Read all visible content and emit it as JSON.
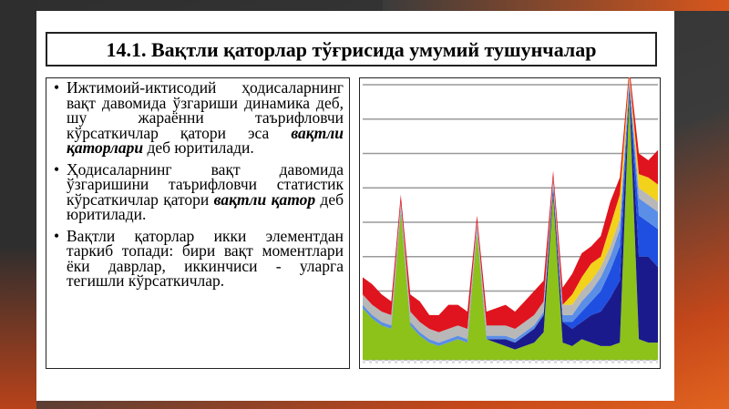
{
  "title": "14.1. Вақтли қаторлар тўғрисида умумий тушунчалар",
  "bullets": [
    [
      "Ижтимоий-иктисодий ҳодисаларнинг вақт давомида ўзгариши динамика деб, шу жараённи таърифловчи кўрсаткичлар қатори эса ",
      "вақтли қаторлари",
      " деб юритилади."
    ],
    [
      "Ҳодисаларнинг вақт давомида ўзгаришини таърифловчи статистик кўрсаткичлар қатори ",
      "вақтли қатор",
      " деб юритилади."
    ],
    [
      "Вақтли қаторлар икки элементдан таркиб топади: бири вақт моментлари ёки даврлар, иккинчиси - уларга тегишли кўрсаткичлар."
    ]
  ],
  "chart_data": {
    "type": "stacked-area",
    "ylim": [
      0,
      8
    ],
    "yticks": [
      0,
      1,
      2,
      3,
      4,
      5,
      6,
      7,
      8
    ],
    "grid": true,
    "series": [
      {
        "color": "#8cc21a",
        "values": [
          1.5,
          1.2,
          1.0,
          0.9,
          4.3,
          1.0,
          0.7,
          0.5,
          0.4,
          0.5,
          0.6,
          0.5,
          3.7,
          0.6,
          0.5,
          0.4,
          0.3,
          0.4,
          0.5,
          0.8,
          4.8,
          0.5,
          0.4,
          0.6,
          0.5,
          0.4,
          0.4,
          0.5,
          7.7,
          0.6,
          0.5,
          0.5
        ]
      },
      {
        "color": "#1a1a8c",
        "values": [
          0,
          0,
          0,
          0,
          0,
          0,
          0,
          0,
          0,
          0,
          0,
          0,
          0,
          0,
          0.1,
          0.2,
          0.2,
          0.3,
          0.4,
          0.5,
          0.2,
          0.6,
          0.5,
          0.5,
          0.8,
          1.0,
          1.4,
          1.8,
          0.2,
          2.4,
          2.5,
          2.2
        ]
      },
      {
        "color": "#1f4fe0",
        "values": [
          0,
          0,
          0,
          0,
          0,
          0,
          0,
          0,
          0,
          0,
          0,
          0,
          0,
          0,
          0,
          0,
          0,
          0,
          0,
          0,
          0,
          0,
          0.2,
          0.3,
          0.4,
          0.6,
          0.8,
          1.0,
          0.1,
          1.2,
          1.0,
          1.1
        ]
      },
      {
        "color": "#5b8ee6",
        "values": [
          0.1,
          0.1,
          0.1,
          0.1,
          0.1,
          0.1,
          0.1,
          0.1,
          0.1,
          0.1,
          0.1,
          0.1,
          0.1,
          0.1,
          0.1,
          0.1,
          0.1,
          0.1,
          0.1,
          0.1,
          0.1,
          0.2,
          0.2,
          0.3,
          0.3,
          0.4,
          0.4,
          0.5,
          0.1,
          0.5,
          0.5,
          0.5
        ]
      },
      {
        "color": "#b8b8b8",
        "values": [
          0.3,
          0.3,
          0.3,
          0.3,
          0.2,
          0.3,
          0.3,
          0.3,
          0.3,
          0.3,
          0.3,
          0.3,
          0.2,
          0.3,
          0.3,
          0.3,
          0.3,
          0.3,
          0.3,
          0.3,
          0.2,
          0.3,
          0.3,
          0.3,
          0.3,
          0.3,
          0.3,
          0.3,
          0.1,
          0.3,
          0.3,
          0.3
        ]
      },
      {
        "color": "#f2d21a",
        "values": [
          0,
          0,
          0,
          0,
          0,
          0,
          0,
          0,
          0,
          0,
          0,
          0,
          0,
          0,
          0,
          0,
          0,
          0,
          0,
          0,
          0,
          0,
          0.3,
          0.4,
          0.5,
          0.3,
          0.6,
          0.7,
          0.1,
          0.4,
          0.5,
          0.5
        ]
      },
      {
        "color": "#e0141e",
        "values": [
          0.5,
          0.6,
          0.5,
          0.4,
          0.2,
          0.5,
          0.6,
          0.4,
          0.5,
          0.7,
          0.6,
          0.5,
          0.2,
          0.4,
          0.5,
          0.6,
          0.5,
          0.6,
          0.7,
          0.6,
          0.2,
          0.5,
          0.6,
          0.7,
          0.5,
          0.6,
          0.7,
          0.5,
          0.2,
          0.6,
          0.5,
          1.0
        ]
      }
    ]
  }
}
